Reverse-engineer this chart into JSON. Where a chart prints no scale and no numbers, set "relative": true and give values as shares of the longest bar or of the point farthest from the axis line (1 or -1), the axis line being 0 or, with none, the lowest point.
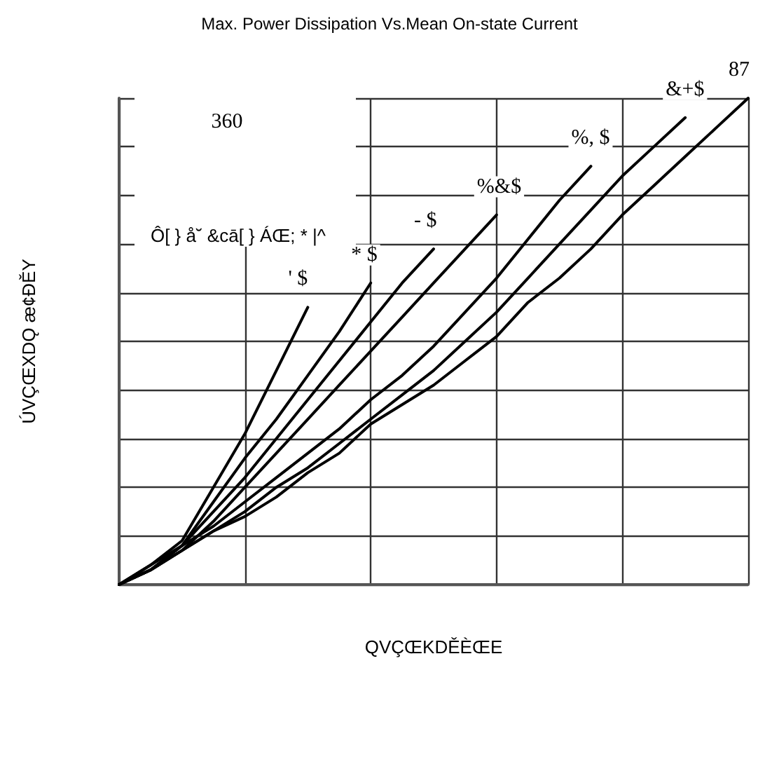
{
  "chart_data": {
    "type": "line",
    "title": "Max. Power Dissipation Vs.Mean On-state Current",
    "xlabel": "QVÇŒKDĚÈŒE",
    "ylabel": "ÚVÇŒXDǪ æ¢ÐĚY",
    "annotations": [
      "360",
      "Ô[ } å˘ &cā[ } ÁŒ; * |^"
    ],
    "categories": [
      null,
      null,
      null,
      null,
      null,
      null,
      null,
      null,
      null,
      null,
      null,
      null,
      null,
      null,
      null,
      null,
      null,
      null,
      null,
      null,
      null
    ],
    "relative": true,
    "grid": true,
    "legend": false,
    "marker": "none",
    "line_style": "solid",
    "series": [
      {
        "name": "' $",
        "color": "#000000",
        "values": [
          0,
          0.04,
          0.09,
          0.2,
          0.31,
          0.44,
          0.57,
          null,
          null,
          null,
          null,
          null,
          null,
          null,
          null,
          null,
          null,
          null,
          null,
          null,
          null
        ]
      },
      {
        "name": "* $",
        "color": "#000000",
        "values": [
          0,
          0.03,
          0.08,
          0.17,
          0.26,
          0.34,
          0.43,
          0.52,
          0.62,
          null,
          null,
          null,
          null,
          null,
          null,
          null,
          null,
          null,
          null,
          null,
          null
        ]
      },
      {
        "name": "- $",
        "color": "#000000",
        "values": [
          0,
          0.03,
          0.08,
          0.15,
          0.22,
          0.3,
          0.38,
          0.46,
          0.54,
          0.62,
          0.69,
          null,
          null,
          null,
          null,
          null,
          null,
          null,
          null,
          null,
          null
        ]
      },
      {
        "name": "%&$",
        "color": "#000000",
        "values": [
          0,
          0.03,
          0.07,
          0.13,
          0.2,
          0.27,
          0.34,
          0.41,
          0.48,
          0.55,
          0.62,
          0.69,
          0.76,
          null,
          null,
          null,
          null,
          null,
          null,
          null,
          null
        ]
      },
      {
        "name": "%, $",
        "color": "#000000",
        "values": [
          0,
          0.04,
          0.08,
          0.12,
          0.17,
          0.22,
          0.27,
          0.32,
          0.38,
          0.43,
          0.49,
          0.56,
          0.63,
          0.71,
          0.79,
          0.86,
          null,
          null,
          null,
          null,
          null
        ]
      },
      {
        "name": "&+$",
        "color": "#000000",
        "values": [
          0,
          0.03,
          0.07,
          0.11,
          0.15,
          0.2,
          0.24,
          0.29,
          0.34,
          0.39,
          0.44,
          0.5,
          0.56,
          0.63,
          0.7,
          0.77,
          0.84,
          0.9,
          0.96,
          null,
          null
        ]
      },
      {
        "name": "87",
        "color": "#000000",
        "values": [
          0,
          0.03,
          0.07,
          0.11,
          0.14,
          0.18,
          0.23,
          0.27,
          0.33,
          0.37,
          0.41,
          0.46,
          0.51,
          0.58,
          0.63,
          0.69,
          0.76,
          0.82,
          0.88,
          0.94,
          1
        ]
      }
    ]
  }
}
